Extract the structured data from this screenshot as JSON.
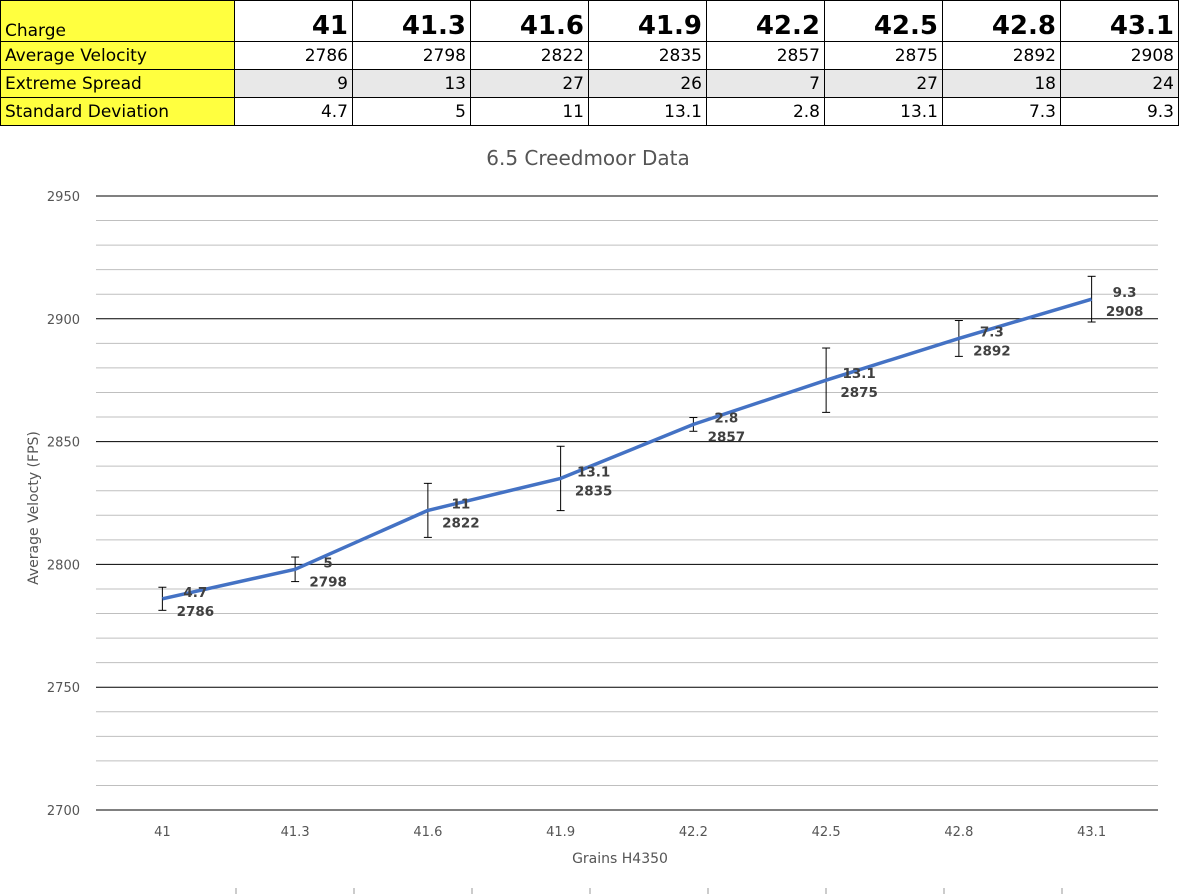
{
  "table": {
    "rows": [
      {
        "label": "Charge",
        "values": [
          "41",
          "41.3",
          "41.6",
          "41.9",
          "42.2",
          "42.5",
          "42.8",
          "43.1"
        ]
      },
      {
        "label": "Average Velocity",
        "values": [
          "2786",
          "2798",
          "2822",
          "2835",
          "2857",
          "2875",
          "2892",
          "2908"
        ]
      },
      {
        "label": "Extreme Spread",
        "values": [
          "9",
          "13",
          "27",
          "26",
          "7",
          "27",
          "18",
          "24"
        ]
      },
      {
        "label": "Standard Deviation",
        "values": [
          "4.7",
          "5",
          "11",
          "13.1",
          "2.8",
          "13.1",
          "7.3",
          "9.3"
        ]
      }
    ],
    "label_color": "#ffff3f"
  },
  "chart_data": {
    "type": "line",
    "title": "6.5 Creedmoor Data",
    "xlabel": "Grains H4350",
    "ylabel": "Average Velocty (FPS)",
    "categories": [
      "41",
      "41.3",
      "41.6",
      "41.9",
      "42.2",
      "42.5",
      "42.8",
      "43.1"
    ],
    "series": [
      {
        "values": [
          2786,
          2798,
          2822,
          2835,
          2857,
          2875,
          2892,
          2908
        ],
        "error": [
          4.7,
          5,
          11,
          13.1,
          2.8,
          13.1,
          7.3,
          9.3
        ],
        "color": "#4472c4"
      }
    ],
    "data_labels": [
      [
        "4.7",
        "2786"
      ],
      [
        "5",
        "2798"
      ],
      [
        "11",
        "2822"
      ],
      [
        "13.1",
        "2835"
      ],
      [
        "2.8",
        "2857"
      ],
      [
        "13.1",
        "2875"
      ],
      [
        "7.3",
        "2892"
      ],
      [
        "9.3",
        "2908"
      ]
    ],
    "ylim": [
      2700,
      2950
    ],
    "yticks": [
      2700,
      2750,
      2800,
      2850,
      2900,
      2950
    ],
    "grid": true,
    "legend": "none"
  }
}
